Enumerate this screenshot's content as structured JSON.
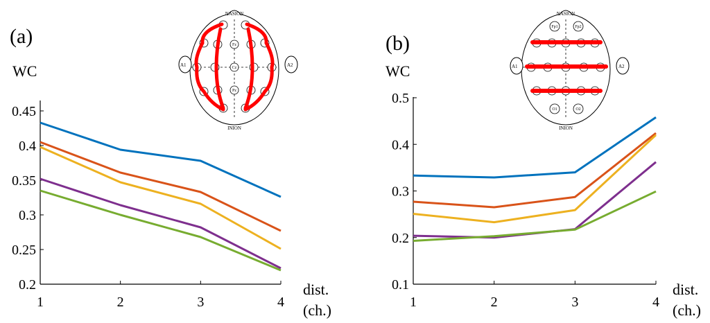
{
  "colors": {
    "blue": "#0072BD",
    "orange": "#D95319",
    "yellow": "#EDB120",
    "purple": "#7E2F8E",
    "green": "#77AC30",
    "electrode_line": "#ff0000"
  },
  "chart_data": [
    {
      "type": "line",
      "panel_label": "(a)",
      "ylabel": "WC",
      "xlabel_line1": "dist.",
      "xlabel_line2": "(ch.)",
      "x": [
        1,
        2,
        3,
        4
      ],
      "xlim": [
        1,
        4
      ],
      "ylim": [
        0.2,
        0.45
      ],
      "yticks": [
        0.2,
        0.25,
        0.3,
        0.35,
        0.4,
        0.45
      ],
      "ytick_labels": [
        "0.2",
        "0.25",
        "0.3",
        "0.35",
        "0.4",
        "0.45"
      ],
      "xtick_labels": [
        "1",
        "2",
        "3",
        "4"
      ],
      "grid": false,
      "series": [
        {
          "color": "#0072BD",
          "values": [
            0.433,
            0.394,
            0.378,
            0.326
          ]
        },
        {
          "color": "#D95319",
          "values": [
            0.405,
            0.361,
            0.333,
            0.277
          ]
        },
        {
          "color": "#EDB120",
          "values": [
            0.398,
            0.347,
            0.316,
            0.251
          ]
        },
        {
          "color": "#7E2F8E",
          "values": [
            0.352,
            0.314,
            0.282,
            0.223
          ]
        },
        {
          "color": "#77AC30",
          "values": [
            0.335,
            0.3,
            0.268,
            0.22
          ]
        }
      ],
      "head_map": {
        "top_label": "NASION",
        "bottom_label": "INION",
        "left_ear": "A1",
        "right_ear": "A2",
        "electrodes": [
          "Fz",
          "Cz",
          "Pz"
        ],
        "line_orientation": "vertical"
      }
    },
    {
      "type": "line",
      "panel_label": "(b)",
      "ylabel": "WC",
      "xlabel_line1": "dist.",
      "xlabel_line2": "(ch.)",
      "x": [
        1,
        2,
        3,
        4
      ],
      "xlim": [
        1,
        4
      ],
      "ylim": [
        0.1,
        0.5
      ],
      "yticks": [
        0.1,
        0.2,
        0.3,
        0.4,
        0.5
      ],
      "ytick_labels": [
        "0.1",
        "0.2",
        "0.3",
        "0.4",
        "0.5"
      ],
      "xtick_labels": [
        "1",
        "2",
        "3",
        "4"
      ],
      "grid": false,
      "series": [
        {
          "color": "#0072BD",
          "values": [
            0.333,
            0.329,
            0.34,
            0.458
          ]
        },
        {
          "color": "#D95319",
          "values": [
            0.277,
            0.265,
            0.287,
            0.424
          ]
        },
        {
          "color": "#EDB120",
          "values": [
            0.251,
            0.233,
            0.259,
            0.42
          ]
        },
        {
          "color": "#7E2F8E",
          "values": [
            0.204,
            0.2,
            0.218,
            0.362
          ]
        },
        {
          "color": "#77AC30",
          "values": [
            0.193,
            0.203,
            0.217,
            0.299
          ]
        }
      ],
      "head_map": {
        "top_label": "NASION",
        "bottom_label": "INION",
        "left_ear": "A1",
        "right_ear": "A2",
        "electrodes": [
          "Fp1",
          "Fp2",
          "O1",
          "O2"
        ],
        "line_orientation": "horizontal"
      }
    }
  ]
}
